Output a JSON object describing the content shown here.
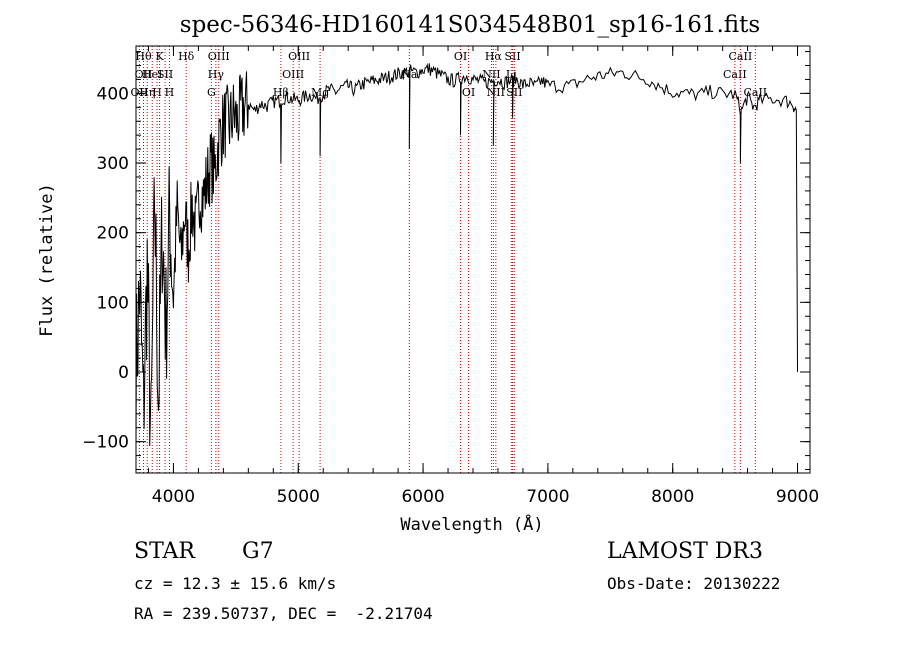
{
  "chart_data": {
    "type": "line",
    "title": "spec-56346-HD160141S034548B01_sp16-161.fits",
    "xlabel": "Wavelength (Å)",
    "ylabel": "Flux (relative)",
    "xlim": [
      3700,
      9100
    ],
    "ylim": [
      -145,
      468
    ],
    "xticks": [
      4000,
      5000,
      6000,
      7000,
      8000,
      9000
    ],
    "yticks": [
      -100,
      0,
      100,
      200,
      300,
      400
    ],
    "series": [
      {
        "name": "flux",
        "x": [
          3700,
          3730,
          3760,
          3790,
          3820,
          3850,
          3880,
          3910,
          3940,
          3970,
          4000,
          4030,
          4060,
          4090,
          4120,
          4150,
          4180,
          4210,
          4240,
          4270,
          4300,
          4330,
          4360,
          4390,
          4420,
          4450,
          4480,
          4510,
          4540,
          4570,
          4600,
          4650,
          4700,
          4750,
          4800,
          4850,
          4900,
          4950,
          5000,
          5050,
          5100,
          5150,
          5200,
          5250,
          5300,
          5350,
          5400,
          5450,
          5500,
          5550,
          5600,
          5650,
          5700,
          5750,
          5800,
          5850,
          5900,
          5950,
          6000,
          6050,
          6100,
          6150,
          6200,
          6250,
          6300,
          6350,
          6400,
          6450,
          6500,
          6550,
          6600,
          6650,
          6700,
          6750,
          6800,
          6850,
          6900,
          6950,
          7000,
          7100,
          7200,
          7300,
          7400,
          7500,
          7600,
          7700,
          7800,
          7900,
          8000,
          8100,
          8200,
          8300,
          8400,
          8500,
          8550,
          8600,
          8650,
          8700,
          8800,
          8900,
          8960,
          8990,
          9000
        ],
        "y": [
          0,
          120,
          -60,
          150,
          -110,
          250,
          -40,
          210,
          60,
          230,
          110,
          235,
          160,
          230,
          175,
          240,
          200,
          260,
          250,
          275,
          300,
          285,
          330,
          350,
          360,
          355,
          370,
          360,
          375,
          380,
          385,
          375,
          385,
          382,
          388,
          390,
          395,
          392,
          390,
          395,
          398,
          392,
          400,
          405,
          402,
          408,
          410,
          405,
          412,
          415,
          418,
          420,
          422,
          425,
          428,
          430,
          432,
          430,
          434,
          435,
          430,
          425,
          420,
          418,
          422,
          425,
          420,
          418,
          415,
          418,
          420,
          416,
          418,
          420,
          412,
          415,
          410,
          418,
          412,
          410,
          412,
          420,
          425,
          428,
          430,
          425,
          420,
          410,
          402,
          400,
          398,
          402,
          400,
          398,
          375,
          395,
          380,
          390,
          392,
          390,
          385,
          375,
          0
        ]
      }
    ],
    "absorption_lines": [
      {
        "x": 5890,
        "depth": 320
      },
      {
        "x": 6300,
        "depth": 340
      },
      {
        "x": 6563,
        "depth": 325
      },
      {
        "x": 6717,
        "depth": 365
      },
      {
        "x": 8542,
        "depth": 300
      },
      {
        "x": 5175,
        "depth": 310
      },
      {
        "x": 4861,
        "depth": 300
      }
    ],
    "line_markers": [
      {
        "x": 3727,
        "row": 3,
        "label": "OII"
      },
      {
        "x": 3760,
        "row": 1,
        "label": "Hθ"
      },
      {
        "x": 3760,
        "row": 2,
        "label": "OII"
      },
      {
        "x": 3790,
        "row": 3,
        "label": "Hη"
      },
      {
        "x": 3830,
        "row": 2,
        "label": "HeI"
      },
      {
        "x": 3869,
        "row": 3,
        "label": "H"
      },
      {
        "x": 3889,
        "row": 1,
        "label": "K"
      },
      {
        "x": 3933,
        "row": 2,
        "label": "SII"
      },
      {
        "x": 3968,
        "row": 3,
        "label": "H"
      },
      {
        "x": 4102,
        "row": 1,
        "label": "Hδ"
      },
      {
        "x": 4340,
        "row": 2,
        "label": "Hγ"
      },
      {
        "x": 4363,
        "row": 1,
        "label": "OIII"
      },
      {
        "x": 4304,
        "row": 3,
        "label": "G"
      },
      {
        "x": 4861,
        "row": 3,
        "label": "Hβ"
      },
      {
        "x": 4959,
        "row": 2,
        "label": "OIII"
      },
      {
        "x": 5007,
        "row": 1,
        "label": "OIII"
      },
      {
        "x": 5175,
        "row": 3,
        "label": "Mg"
      },
      {
        "x": 5890,
        "row": 2,
        "label": "Na"
      },
      {
        "x": 6300,
        "row": 1,
        "label": "OI"
      },
      {
        "x": 6364,
        "row": 3,
        "label": "OI"
      },
      {
        "x": 6548,
        "row": 2,
        "label": "NII"
      },
      {
        "x": 6563,
        "row": 1,
        "label": "Hα"
      },
      {
        "x": 6583,
        "row": 3,
        "label": "NII"
      },
      {
        "x": 6707,
        "row": 2,
        "label": "Li"
      },
      {
        "x": 6717,
        "row": 1,
        "label": "SII"
      },
      {
        "x": 6731,
        "row": 3,
        "label": "SII"
      },
      {
        "x": 8498,
        "row": 2,
        "label": "CaII"
      },
      {
        "x": 8542,
        "row": 1,
        "label": "CaII"
      },
      {
        "x": 8662,
        "row": 3,
        "label": "CaII"
      }
    ],
    "marker_color": "#cc0000",
    "line_color": "#000000"
  },
  "info": {
    "object_class": "STAR",
    "subclass": "G7",
    "survey": "LAMOST DR3",
    "cz": "cz = 12.3 ± 15.6 km/s",
    "obs_date": "Obs-Date: 20130222",
    "coords": "RA = 239.50737, DEC =  -2.21704"
  }
}
